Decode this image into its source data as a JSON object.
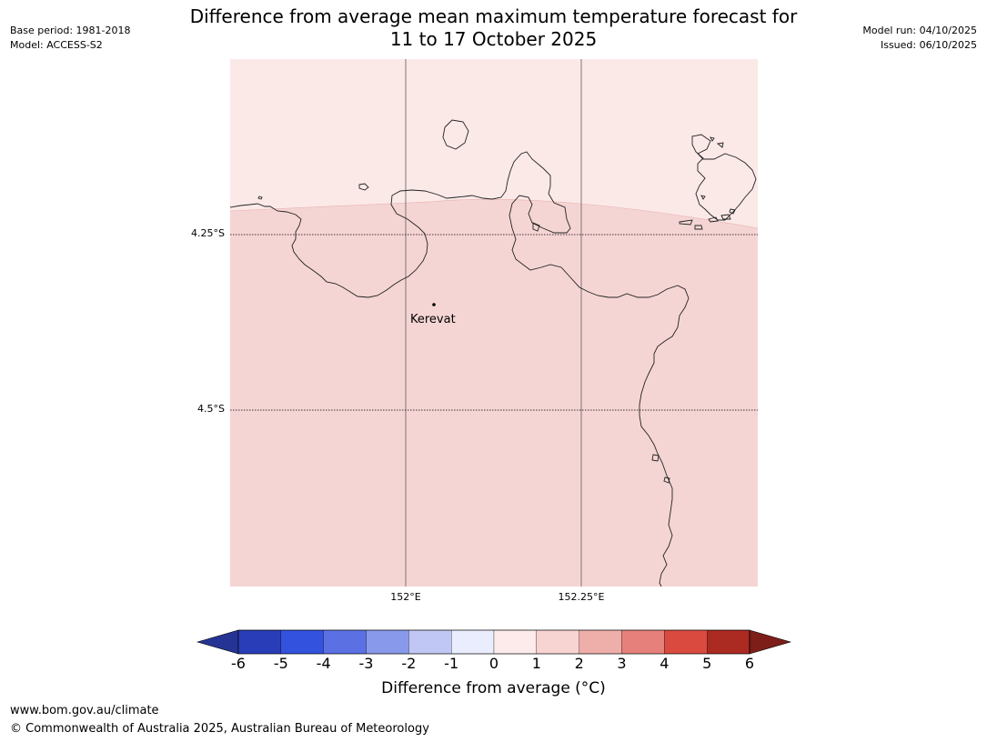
{
  "header": {
    "base_period": "Base period: 1981-2018",
    "model": "Model: ACCESS-S2",
    "model_run": "Model run: 04/10/2025",
    "issued": "Issued: 06/10/2025",
    "title_line1": "Difference from average mean maximum temperature forecast for",
    "title_line2": "11 to 17 October 2025"
  },
  "map": {
    "lat_labels": [
      "4.25°S",
      "4.5°S"
    ],
    "lon_labels": [
      "152°E",
      "152.25°E"
    ],
    "place": {
      "name": "Kerevat"
    },
    "fill_colors": {
      "upper": "#fbe9e8",
      "lower": "#f5d5d4"
    }
  },
  "colorbar": {
    "ticks": [
      "-6",
      "-5",
      "-4",
      "-3",
      "-2",
      "-1",
      "0",
      "1",
      "2",
      "3",
      "4",
      "5",
      "6"
    ],
    "colors": [
      "#253494",
      "#2a3db8",
      "#3352dd",
      "#5b71e3",
      "#8899ec",
      "#c0c7f4",
      "#eaedfd",
      "#fcebea",
      "#f7d3d1",
      "#eeaea9",
      "#e5807a",
      "#da4a3f",
      "#ab2a22",
      "#7d1e19"
    ],
    "label": "Difference from average (°C)"
  },
  "footer": {
    "url": "www.bom.gov.au/climate",
    "copyright": "© Commonwealth of Australia 2025, Australian Bureau of Meteorology"
  }
}
